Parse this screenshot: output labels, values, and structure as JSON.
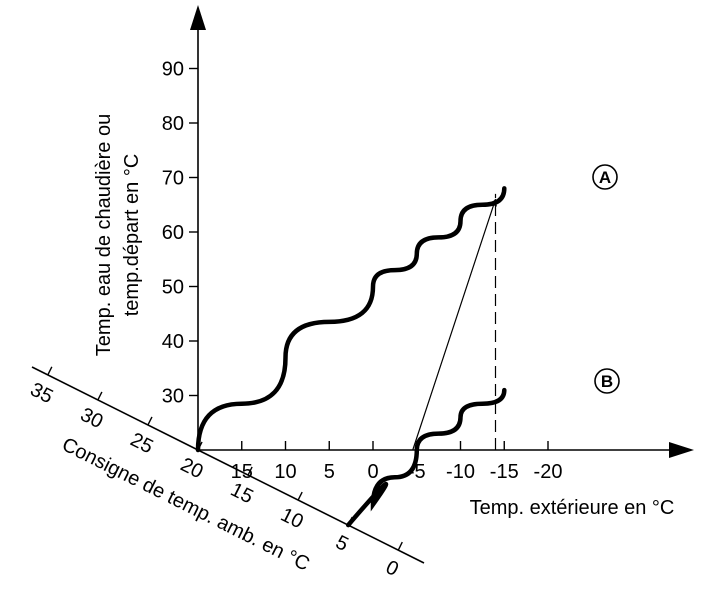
{
  "chart_data": {
    "type": "line",
    "ylabel_line1": "Temp. eau de chaudière ou",
    "ylabel_line2": "temp.départ en °C",
    "xlabel": "Temp. extérieure en °C",
    "zlabel": "Consigne de temp. amb. en °C",
    "y_ticks": [
      "30",
      "40",
      "50",
      "60",
      "70",
      "80",
      "90"
    ],
    "x_ticks": [
      "15",
      "10",
      "5",
      "0",
      "-5",
      "-10",
      "-15",
      "-20"
    ],
    "z_ticks": [
      "35",
      "30",
      "25",
      "20",
      "15",
      "10",
      "5",
      "0"
    ],
    "series": [
      {
        "name": "A",
        "room_setpoint": 20,
        "points": [
          [
            20,
            20
          ],
          [
            10,
            37
          ],
          [
            0,
            50
          ],
          [
            -5,
            56
          ],
          [
            -10,
            62
          ],
          [
            -15,
            68
          ]
        ]
      },
      {
        "name": "B",
        "room_setpoint": 5,
        "points": [
          [
            5,
            5
          ],
          [
            0,
            10
          ],
          [
            -5,
            20
          ],
          [
            -10,
            26
          ],
          [
            -15,
            31
          ]
        ]
      }
    ],
    "example_line": {
      "from_outdoor": -5,
      "to_series": "A",
      "reading_outdoor": -14
    }
  }
}
